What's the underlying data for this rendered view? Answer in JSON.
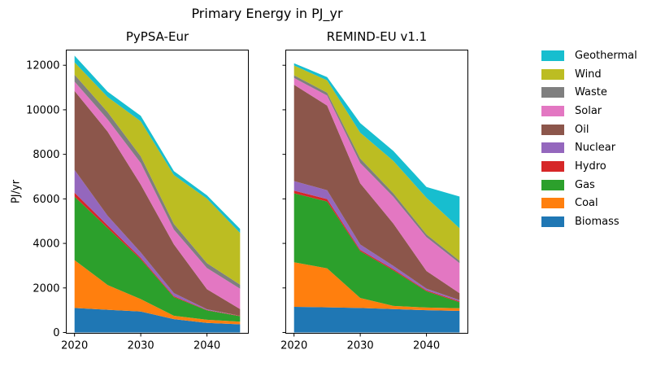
{
  "figure": {
    "background": "#ffffff"
  },
  "chart_data": {
    "type": "area",
    "stacked": true,
    "title": "Primary Energy in PJ_yr",
    "ylabel": "PJ/yr",
    "xlabel": "",
    "x": [
      2020,
      2025,
      2030,
      2035,
      2040,
      2045
    ],
    "xticks": [
      2020,
      2030,
      2040
    ],
    "yticks": [
      0,
      2000,
      4000,
      6000,
      8000,
      10000,
      12000
    ],
    "xlim": [
      2018.75,
      2046.25
    ],
    "ylim": [
      0,
      12670
    ],
    "grid": false,
    "legend_position": "right",
    "legend_top_to_bottom": [
      "Geothermal",
      "Wind",
      "Waste",
      "Solar",
      "Oil",
      "Nuclear",
      "Hydro",
      "Gas",
      "Coal",
      "Biomass"
    ],
    "stack_order_bottom_to_top": [
      "Biomass",
      "Coal",
      "Gas",
      "Hydro",
      "Nuclear",
      "Oil",
      "Solar",
      "Waste",
      "Wind",
      "Geothermal"
    ],
    "colors": {
      "Biomass": "#1f77b4",
      "Coal": "#ff7f0e",
      "Gas": "#2ca02c",
      "Hydro": "#d62728",
      "Nuclear": "#9467bd",
      "Oil": "#8c564b",
      "Solar": "#e377c2",
      "Waste": "#7f7f7f",
      "Wind": "#bcbd22",
      "Geothermal": "#17becf"
    },
    "subplots": [
      {
        "title": "PyPSA-Eur",
        "series": {
          "Biomass": [
            1100,
            1020,
            940,
            600,
            430,
            365
          ],
          "Coal": [
            2150,
            1110,
            560,
            150,
            140,
            120
          ],
          "Gas": [
            2850,
            2560,
            1790,
            840,
            420,
            245
          ],
          "Hydro": [
            180,
            120,
            60,
            40,
            20,
            20
          ],
          "Nuclear": [
            1020,
            430,
            245,
            140,
            30,
            0
          ],
          "Oil": [
            3550,
            3780,
            3045,
            2190,
            900,
            300
          ],
          "Solar": [
            420,
            550,
            975,
            660,
            950,
            915
          ],
          "Waste": [
            310,
            330,
            300,
            255,
            220,
            185
          ],
          "Wind": [
            550,
            675,
            1570,
            2195,
            2900,
            2315
          ],
          "Geothermal": [
            300,
            240,
            245,
            180,
            150,
            185
          ]
        }
      },
      {
        "title": "REMIND-EU v1.1",
        "series": {
          "Biomass": [
            1150,
            1130,
            1100,
            1050,
            1000,
            970
          ],
          "Coal": [
            2000,
            1750,
            450,
            140,
            120,
            120
          ],
          "Gas": [
            3100,
            3000,
            2100,
            1600,
            730,
            265
          ],
          "Hydro": [
            120,
            110,
            60,
            50,
            40,
            40
          ],
          "Nuclear": [
            430,
            400,
            240,
            150,
            80,
            60
          ],
          "Oil": [
            4325,
            3800,
            2750,
            1900,
            790,
            305
          ],
          "Solar": [
            305,
            450,
            915,
            1200,
            1520,
            1350
          ],
          "Waste": [
            120,
            130,
            200,
            160,
            125,
            110
          ],
          "Wind": [
            440,
            550,
            1160,
            1450,
            1645,
            1460
          ],
          "Geothermal": [
            100,
            150,
            430,
            450,
            486,
            1425
          ]
        }
      }
    ]
  }
}
